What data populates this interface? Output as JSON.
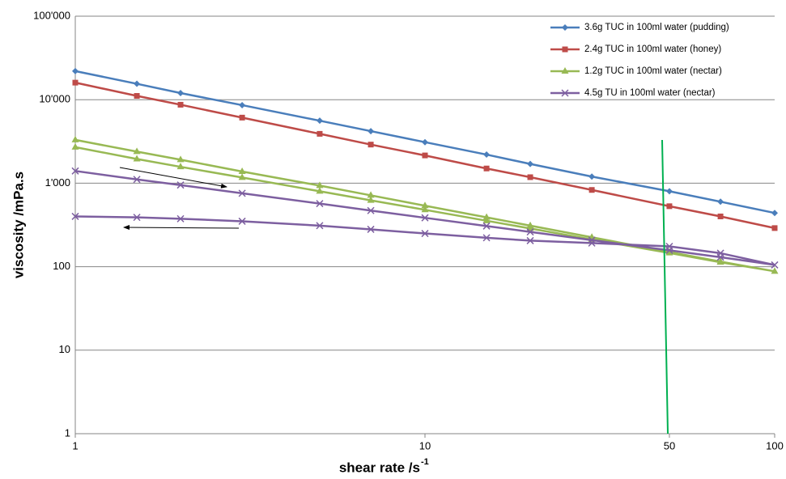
{
  "chart_data": {
    "type": "line",
    "ylabel": "viscosity /mPa.s",
    "xlabel": "shear rate /s",
    "xlabel_sup": "-1",
    "log_x": true,
    "log_y": true,
    "grid": true,
    "legend": "upper right",
    "xlim": [
      1,
      100
    ],
    "ylim": [
      1,
      100000
    ],
    "xticks": [
      1,
      10,
      50,
      100
    ],
    "yticks": [
      1,
      10,
      100,
      {
        "value": 1000,
        "label": "1'000"
      },
      {
        "value": 10000,
        "label": "10'000"
      },
      {
        "value": 100000,
        "label": "100'000"
      }
    ],
    "series": [
      {
        "name": "3.6g TUC in 100ml water (pudding)",
        "color": "#4a7ebb",
        "marker": "diamond",
        "x": [
          1,
          1.5,
          2,
          3,
          5,
          7,
          10,
          15,
          20,
          30,
          50,
          70,
          100
        ],
        "values": [
          22000,
          15500,
          12000,
          8600,
          5600,
          4200,
          3100,
          2200,
          1700,
          1200,
          800,
          600,
          440
        ]
      },
      {
        "name": "2.4g TUC in 100ml water (honey)",
        "color": "#be4b48",
        "marker": "square",
        "x": [
          1,
          1.5,
          2,
          3,
          5,
          7,
          10,
          15,
          20,
          30,
          50,
          70,
          100
        ],
        "values": [
          16000,
          11100,
          8700,
          6100,
          3900,
          2900,
          2150,
          1500,
          1180,
          830,
          530,
          400,
          290
        ]
      },
      {
        "name": "1.2g TUC in 100ml water (nectar)",
        "color": "#98b954",
        "marker": "triangle",
        "x": [
          1,
          1.5,
          2,
          3,
          5,
          7,
          10,
          15,
          20,
          30,
          50,
          70,
          100,
          70,
          50,
          30,
          20,
          15,
          10,
          7,
          5,
          3,
          2,
          1.5,
          1
        ],
        "values": [
          3300,
          2390,
          1910,
          1380,
          935,
          715,
          537,
          390,
          310,
          225,
          150,
          115,
          88,
          113,
          146,
          212,
          287,
          355,
          480,
          623,
          800,
          1170,
          1570,
          1950,
          2700
        ]
      },
      {
        "name": "4.5g TU in 100ml water (nectar)",
        "color": "#7d5fa0",
        "marker": "x",
        "x": [
          1,
          1.5,
          2,
          3,
          5,
          7,
          10,
          15,
          20,
          30,
          50,
          70,
          100,
          70,
          50,
          30,
          20,
          15,
          10,
          7,
          5,
          3,
          2,
          1.5,
          1
        ],
        "values": [
          1400,
          1110,
          950,
          757,
          570,
          470,
          385,
          307,
          261,
          208,
          157,
          130,
          105,
          145,
          175,
          192,
          205,
          222,
          250,
          280,
          310,
          350,
          375,
          390,
          400
        ]
      }
    ]
  }
}
